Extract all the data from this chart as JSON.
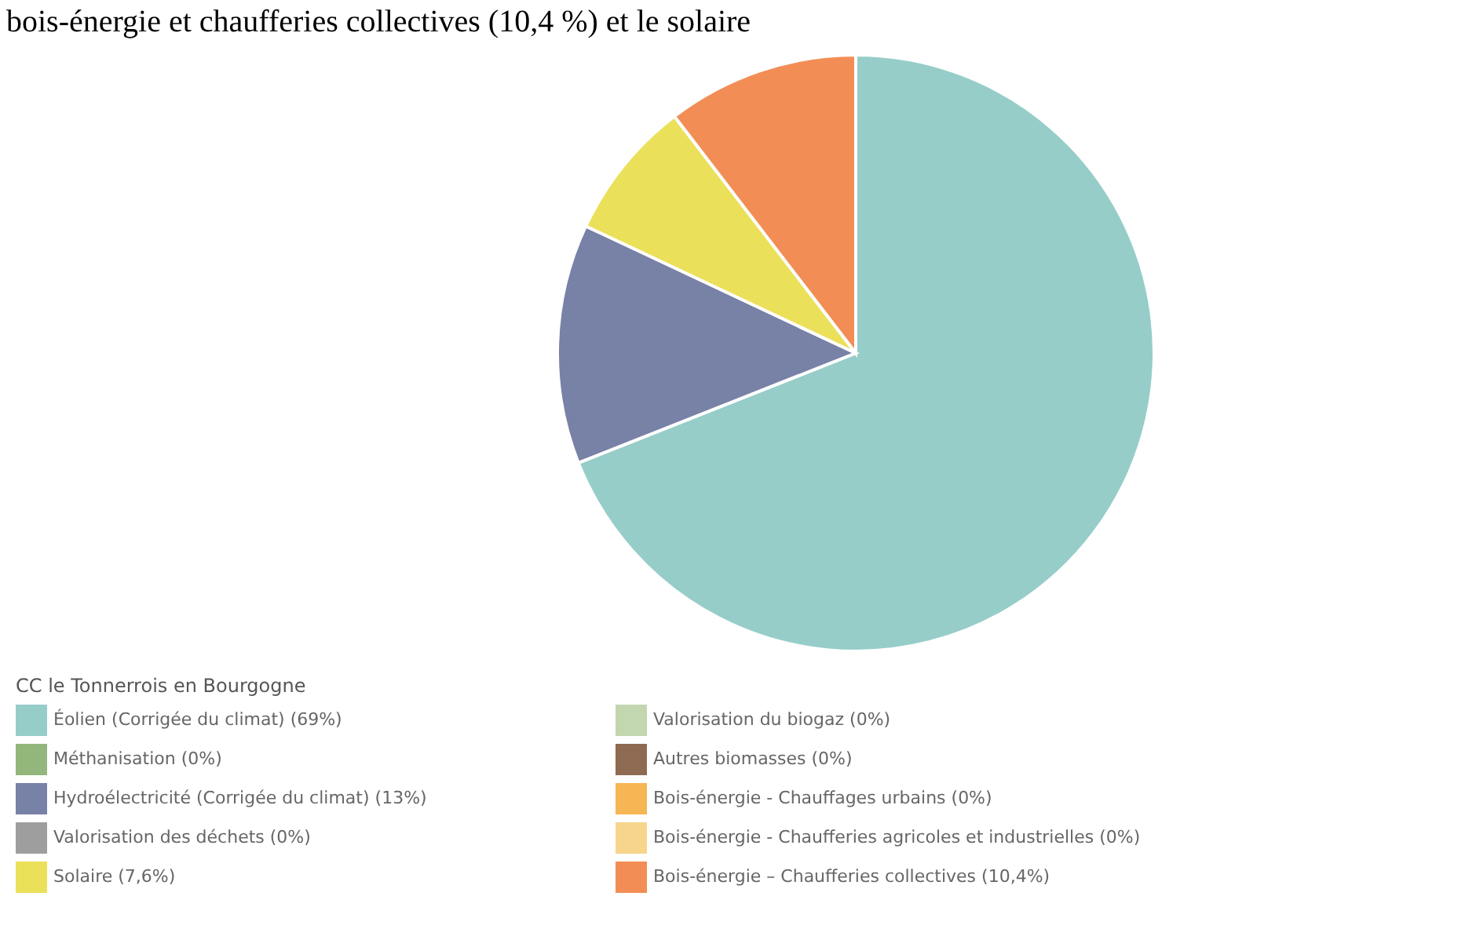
{
  "chart_data": {
    "type": "pie",
    "annotations": [
      "bois-énergie et chaufferies collectives (10,4 %) et le solaire"
    ],
    "legend_title": "CC le Tonnerrois en Bourgogne",
    "legend": "bottom",
    "categories": [
      "Éolien (Corrigée du climat) (69%)",
      "Méthanisation (0%)",
      "Hydroélectricité (Corrigée du climat) (13%)",
      "Valorisation des déchets (0%)",
      "Solaire (7,6%)",
      "Valorisation du biogaz (0%)",
      "Autres biomasses (0%)",
      "Bois-énergie - Chauffages urbains (0%)",
      "Bois-énergie - Chaufferies agricoles et industrielles (0%)",
      "Bois-énergie – Chaufferies collectives (10,4%)"
    ],
    "values": [
      69,
      0,
      13,
      0,
      7.6,
      0,
      0,
      0,
      0,
      10.4
    ],
    "colors": [
      "#96cdc9",
      "#93b67c",
      "#7881a6",
      "#9e9e9e",
      "#ebe05a",
      "#c2d6b0",
      "#8e6a52",
      "#f5b653",
      "#f7d58c",
      "#f28e55"
    ]
  }
}
